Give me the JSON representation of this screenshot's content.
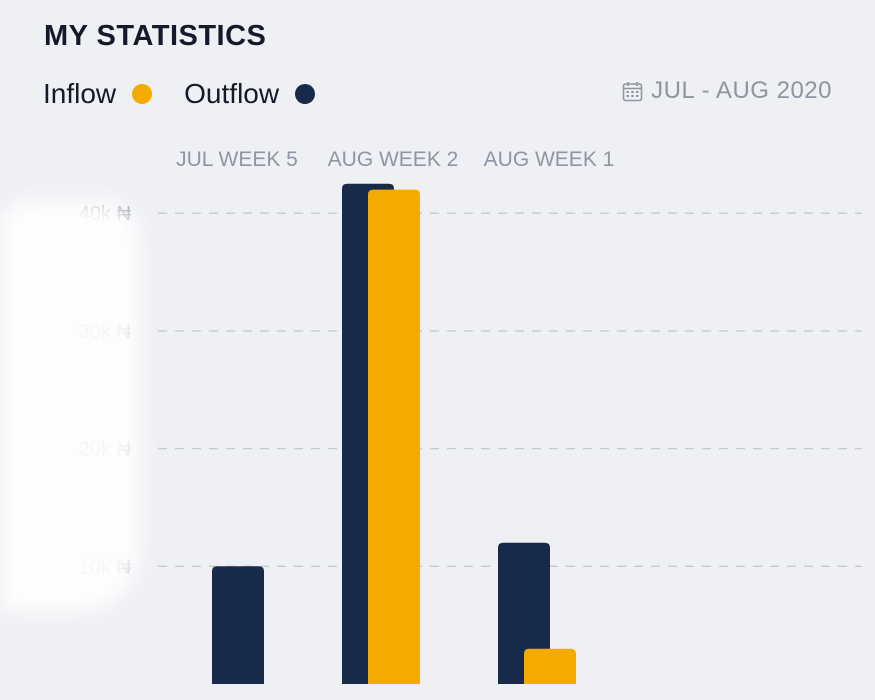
{
  "header": {
    "title": "MY STATISTICS"
  },
  "legend": {
    "inflow_label": "Inflow",
    "outflow_label": "Outflow"
  },
  "date_range": {
    "label": "JUL - AUG 2020",
    "icon": "calendar-icon"
  },
  "colors": {
    "inflow": "#f4ab00",
    "outflow": "#182a4a",
    "grid": "#c6c9d2",
    "muted_text": "#8f95a3",
    "background": "#eff0f4"
  },
  "chart_data": {
    "type": "bar",
    "title": "MY STATISTICS",
    "categories": [
      "JUL WEEK 5",
      "AUG WEEK 2",
      "AUG WEEK 1"
    ],
    "series": [
      {
        "name": "Outflow",
        "values": [
          10000,
          42500,
          12000
        ]
      },
      {
        "name": "Inflow",
        "values": [
          0,
          42000,
          3000
        ]
      }
    ],
    "y_ticks": [
      10000,
      20000,
      30000,
      40000
    ],
    "y_tick_labels": [
      "10k ₦",
      "20k ₦",
      "30k ₦",
      "40k ₦"
    ],
    "ylim": [
      0,
      45000
    ],
    "grid": true,
    "legend_position": "top-left",
    "xlabel": "",
    "ylabel": ""
  }
}
